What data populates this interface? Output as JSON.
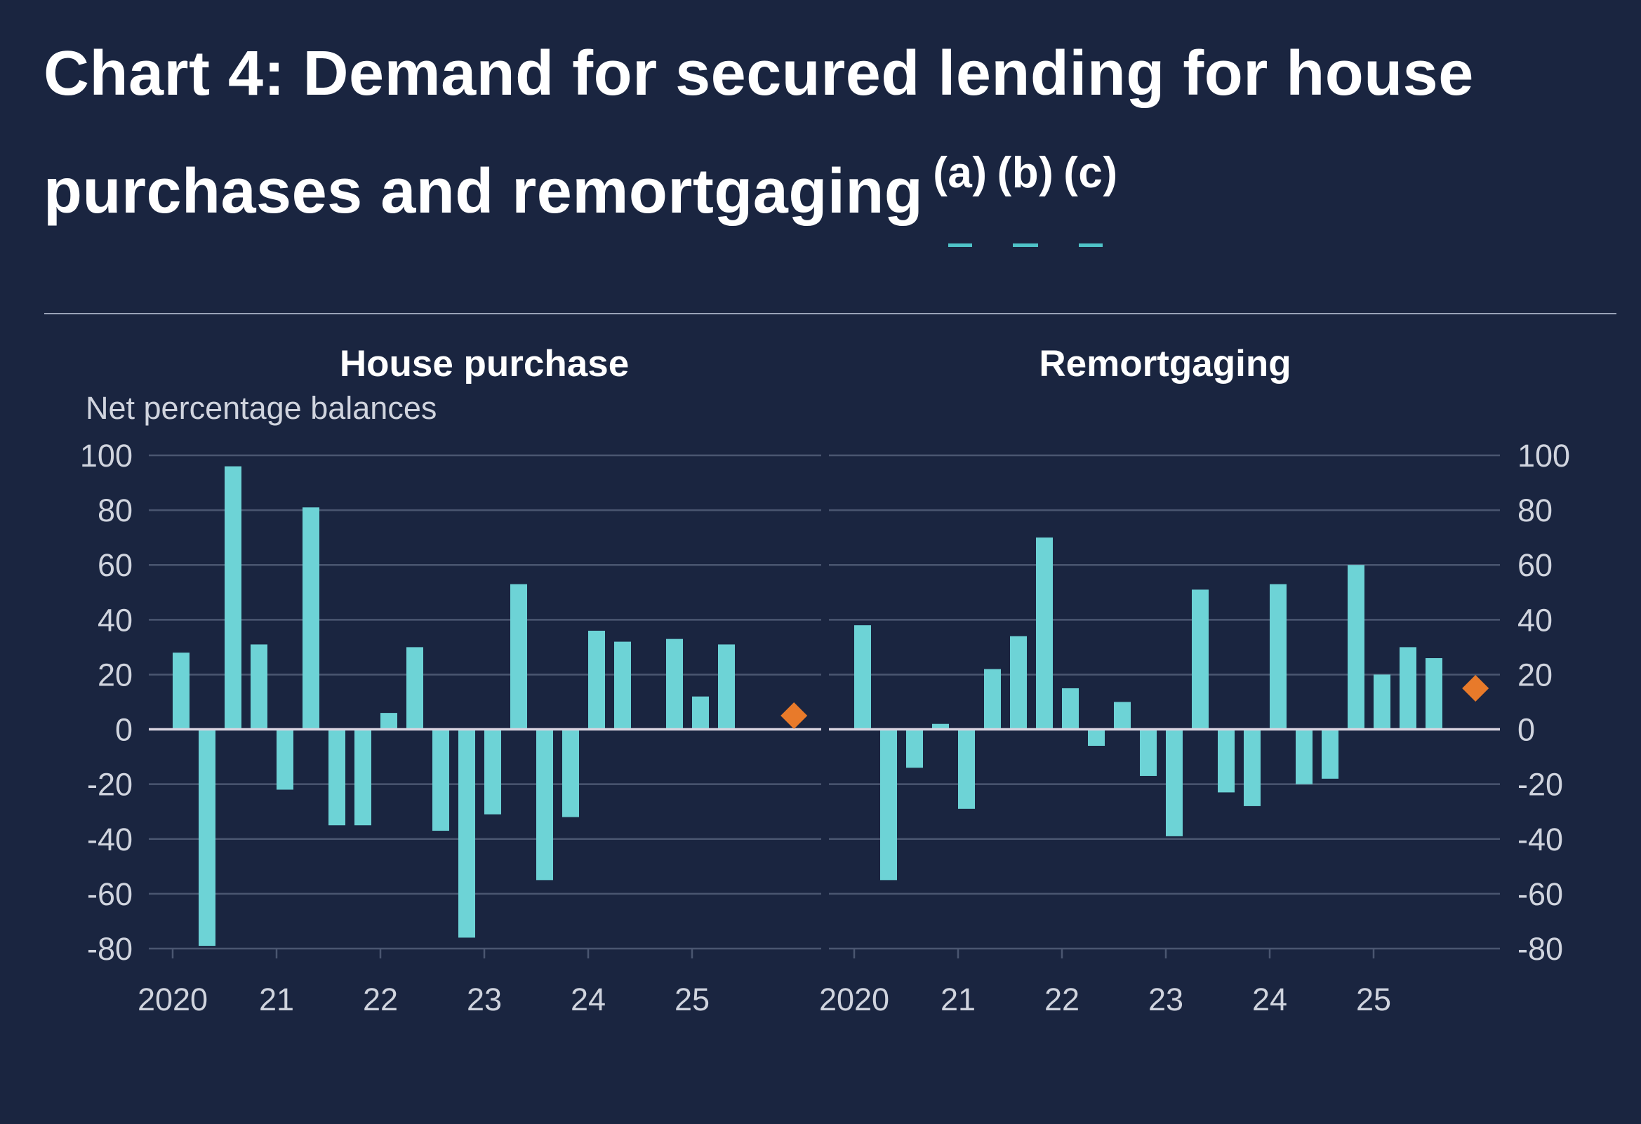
{
  "title": "Chart 4: Demand for secured lending for house purchases and remortgaging",
  "footnotes": [
    "(a)",
    "(b)",
    "(c)"
  ],
  "colors": {
    "background": "#1a2540",
    "bars": "#6dd3d6",
    "projection": "#e87a2a",
    "grid": "#4a5670",
    "zero_line": "#d8d4e0"
  },
  "chart_data": [
    {
      "type": "bar",
      "title": "House purchase",
      "ylabel": "Net percentage balances",
      "ylim": [
        -80,
        100
      ],
      "yticks": [
        100,
        80,
        60,
        40,
        20,
        0,
        -20,
        -40,
        -60,
        -80
      ],
      "xtick_labels": [
        "2020",
        "21",
        "22",
        "23",
        "24",
        "25"
      ],
      "frequency": "quarterly",
      "start": "2020 Q1",
      "values": [
        28,
        -79,
        96,
        31,
        -22,
        81,
        -35,
        -35,
        6,
        30,
        -37,
        -76,
        -31,
        53,
        -55,
        -32,
        36,
        32,
        0,
        33,
        12,
        31,
        0
      ],
      "projection": {
        "value": 5,
        "marker": "diamond"
      },
      "grid": true,
      "yaxis_side": "left"
    },
    {
      "type": "bar",
      "title": "Remortgaging",
      "ylim": [
        -80,
        100
      ],
      "yticks": [
        100,
        80,
        60,
        40,
        20,
        0,
        -20,
        -40,
        -60,
        -80
      ],
      "xtick_labels": [
        "2020",
        "21",
        "22",
        "23",
        "24",
        "25"
      ],
      "frequency": "quarterly",
      "start": "2020 Q1",
      "values": [
        38,
        -55,
        -14,
        2,
        -29,
        22,
        34,
        70,
        15,
        -6,
        10,
        -17,
        -39,
        51,
        -23,
        -28,
        53,
        -20,
        -18,
        60,
        20,
        30,
        26
      ],
      "projection": {
        "value": 15,
        "marker": "diamond"
      },
      "grid": true,
      "yaxis_side": "right"
    }
  ]
}
